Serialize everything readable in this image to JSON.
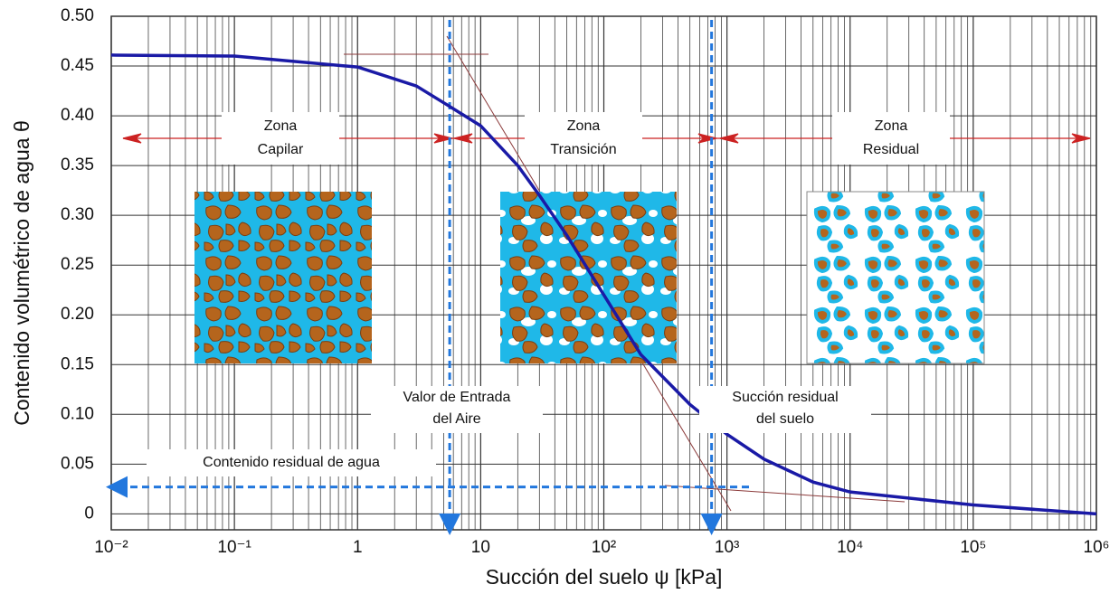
{
  "chart_data": {
    "type": "line",
    "xlabel": "Succión del suelo ψ [kPa]",
    "ylabel": "Contenido volumétrico de agua θ",
    "log_x": true,
    "grid": true,
    "xlim": [
      0.01,
      1000000
    ],
    "ylim": [
      -0.016,
      0.5
    ],
    "xticks": [
      {
        "value": 0.01,
        "label": "10⁻²"
      },
      {
        "value": 0.1,
        "label": "10⁻¹"
      },
      1,
      10,
      {
        "value": 100,
        "label": "10²"
      },
      {
        "value": 1000,
        "label": "10³"
      },
      {
        "value": 10000,
        "label": "10⁴"
      },
      {
        "value": 100000,
        "label": "10⁵"
      },
      {
        "value": 1000000,
        "label": "10⁶"
      }
    ],
    "yticks": [
      {
        "value": 0.5,
        "label": "0.50"
      },
      {
        "value": 0.45,
        "label": "0.45"
      },
      {
        "value": 0.4,
        "label": "0.40"
      },
      {
        "value": 0.35,
        "label": "0.35"
      },
      {
        "value": 0.3,
        "label": "0.30"
      },
      {
        "value": 0.25,
        "label": "0.25"
      },
      {
        "value": 0.2,
        "label": "0.20"
      },
      {
        "value": 0.15,
        "label": "0.15"
      },
      {
        "value": 0.1,
        "label": "0.10"
      },
      {
        "value": 0.05,
        "label": "0.05"
      },
      0
    ],
    "x": [
      0.01,
      0.1,
      1,
      3,
      5.5,
      10,
      20,
      30,
      50,
      100,
      200,
      500,
      1000,
      2000,
      5000,
      10000,
      100000,
      1000000
    ],
    "series": [
      {
        "color": "#1a1aa6",
        "values": [
          0.461,
          0.46,
          0.449,
          0.43,
          0.41,
          0.39,
          0.35,
          0.32,
          0.28,
          0.22,
          0.16,
          0.11,
          0.08,
          0.055,
          0.032,
          0.022,
          0.009,
          0.0
        ]
      }
    ],
    "zones": [
      [
        "Zona",
        "Capilar"
      ],
      [
        "Zona",
        "Transición"
      ],
      [
        "Zona",
        "Residual"
      ]
    ],
    "air_entry": {
      "label": [
        "Valor de Entrada",
        "del Aire"
      ],
      "x": 5.6
    },
    "residual_suction": {
      "label": [
        "Succión residual",
        "del suelo"
      ],
      "x": 750
    },
    "residual_water_content": {
      "label": "Contenido residual de agua",
      "y": 0.027
    },
    "reference_color": "#2277dd"
  }
}
